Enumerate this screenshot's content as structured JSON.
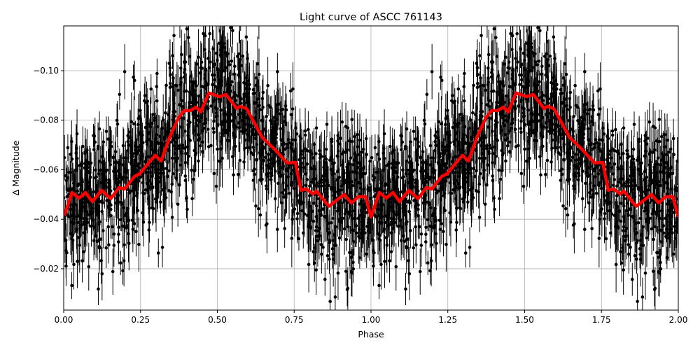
{
  "chart_data": {
    "type": "scatter",
    "title": "Light curve of ASCC 761143",
    "xlabel": "Phase",
    "ylabel": "Δ Magnitude",
    "xlim": [
      0,
      2
    ],
    "ylim": [
      -0.1181,
      -0.0033
    ],
    "y_inverted": true,
    "grid": true,
    "xticks": [
      "0.00",
      "0.25",
      "0.50",
      "0.75",
      "1.00",
      "1.25",
      "1.50",
      "1.75",
      "2.00"
    ],
    "yticks": [
      "−0.10",
      "−0.08",
      "−0.06",
      "−0.04",
      "−0.02"
    ],
    "ytick_values": [
      -0.1,
      -0.08,
      -0.06,
      -0.04,
      -0.02
    ],
    "xtick_values": [
      0,
      0.25,
      0.5,
      0.75,
      1,
      1.25,
      1.5,
      1.75,
      2
    ],
    "colors": {
      "points": "#000000",
      "smoothed": "#ff0000",
      "grid": "#b0b0b0"
    },
    "smoothed_curve": {
      "phase": [
        0.002,
        0.027,
        0.05,
        0.071,
        0.093,
        0.123,
        0.153,
        0.18,
        0.198,
        0.23,
        0.248,
        0.276,
        0.298,
        0.317,
        0.344,
        0.374,
        0.392,
        0.412,
        0.431,
        0.446,
        0.472,
        0.506,
        0.528,
        0.563,
        0.574,
        0.595,
        0.647,
        0.686,
        0.727,
        0.754,
        0.772,
        0.79,
        0.811,
        0.822,
        0.863,
        0.882,
        0.913,
        0.936,
        0.959,
        0.982,
        1.0,
        1.027,
        1.05,
        1.071,
        1.093,
        1.123,
        1.153,
        1.18,
        1.198,
        1.23,
        1.248,
        1.276,
        1.298,
        1.317,
        1.344,
        1.374,
        1.392,
        1.412,
        1.431,
        1.446,
        1.472,
        1.506,
        1.528,
        1.563,
        1.574,
        1.595,
        1.647,
        1.686,
        1.727,
        1.754,
        1.772,
        1.79,
        1.811,
        1.822,
        1.863,
        1.882,
        1.913,
        1.936,
        1.959,
        1.982,
        2.0
      ],
      "magnitude": [
        -0.0415,
        -0.0508,
        -0.0485,
        -0.0508,
        -0.0471,
        -0.0517,
        -0.0483,
        -0.0528,
        -0.0522,
        -0.0573,
        -0.0584,
        -0.0627,
        -0.0658,
        -0.0635,
        -0.0729,
        -0.0811,
        -0.0839,
        -0.0839,
        -0.0853,
        -0.0833,
        -0.091,
        -0.0895,
        -0.0904,
        -0.0847,
        -0.0856,
        -0.0847,
        -0.0729,
        -0.0683,
        -0.0627,
        -0.063,
        -0.0517,
        -0.0522,
        -0.0502,
        -0.0514,
        -0.0452,
        -0.0471,
        -0.05,
        -0.0466,
        -0.0491,
        -0.0491,
        -0.0409,
        -0.0508,
        -0.0485,
        -0.0508,
        -0.0471,
        -0.0517,
        -0.0483,
        -0.0528,
        -0.0522,
        -0.0573,
        -0.0584,
        -0.0627,
        -0.0658,
        -0.0635,
        -0.0729,
        -0.0811,
        -0.0839,
        -0.0839,
        -0.0853,
        -0.0833,
        -0.091,
        -0.0895,
        -0.0904,
        -0.0847,
        -0.0856,
        -0.0847,
        -0.0729,
        -0.0683,
        -0.0627,
        -0.063,
        -0.0517,
        -0.0522,
        -0.0502,
        -0.0514,
        -0.0452,
        -0.0471,
        -0.05,
        -0.0466,
        -0.0491,
        -0.0491,
        -0.0409
      ]
    }
  }
}
